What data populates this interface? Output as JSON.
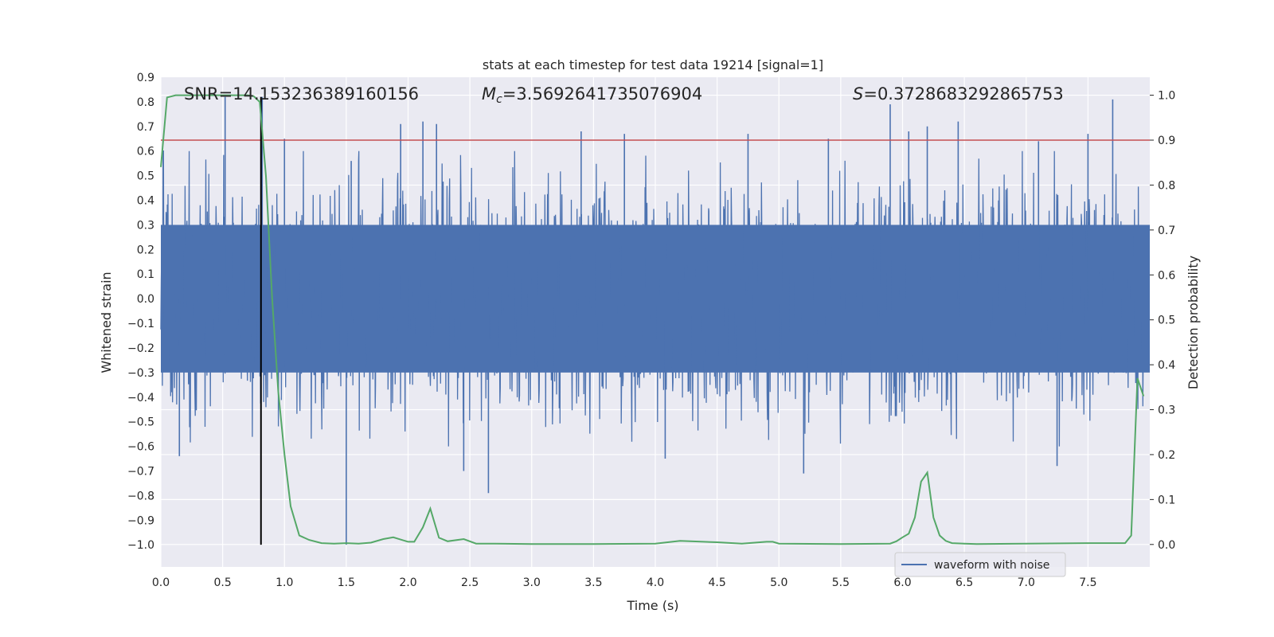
{
  "chart_data": {
    "type": "line",
    "title": "stats at each timestep for test data 19214 [signal=1]",
    "xlabel": "Time (s)",
    "ylabel": "Whitened strain",
    "ylabel_right": "Detection probability",
    "xlim": [
      0.0,
      8.0
    ],
    "ylim": [
      -1.09,
      0.9
    ],
    "ylim_right": [
      -0.05,
      1.04
    ],
    "x_ticks": [
      "0.0",
      "0.5",
      "1.0",
      "1.5",
      "2.0",
      "2.5",
      "3.0",
      "3.5",
      "4.0",
      "4.5",
      "5.0",
      "5.5",
      "6.0",
      "6.5",
      "7.0",
      "7.5"
    ],
    "y_ticks": [
      "0.9",
      "0.8",
      "0.7",
      "0.6",
      "0.5",
      "0.4",
      "0.3",
      "0.2",
      "0.1",
      "0.0",
      "−0.1",
      "−0.2",
      "−0.3",
      "−0.4",
      "−0.5",
      "−0.6",
      "−0.7",
      "−0.8",
      "−0.9",
      "−1.0"
    ],
    "y_ticks_right": [
      "1.0",
      "0.9",
      "0.8",
      "0.7",
      "0.6",
      "0.5",
      "0.4",
      "0.3",
      "0.2",
      "0.1",
      "0.0"
    ],
    "grid": true,
    "legend": {
      "position": "bottom-right",
      "entries": [
        "waveform with noise"
      ]
    },
    "annotations": {
      "snr": "SNR=14.153236389160156",
      "mc_symbol": "M",
      "mc_sub": "c",
      "mc_value": "=3.5692641735076904",
      "s_symbol": "S",
      "s_value": "=0.3728683292865753"
    },
    "threshold_right": 0.9,
    "event_time": 0.81,
    "event_line_range": [
      -1.0,
      0.82
    ],
    "waveform": {
      "name": "waveform with noise",
      "core_amplitude": 0.3,
      "envelope_amplitude": 0.55,
      "spikes": [
        [
          0.52,
          0.82
        ],
        [
          0.82,
          0.82
        ],
        [
          1.0,
          0.65
        ],
        [
          1.5,
          -1.0
        ],
        [
          1.54,
          0.56
        ],
        [
          1.94,
          0.71
        ],
        [
          2.12,
          0.72
        ],
        [
          2.23,
          0.71
        ],
        [
          2.65,
          -0.79
        ],
        [
          3.4,
          0.68
        ],
        [
          3.75,
          0.67
        ],
        [
          4.08,
          -0.65
        ],
        [
          4.75,
          0.67
        ],
        [
          5.2,
          -0.71
        ],
        [
          5.4,
          0.65
        ],
        [
          5.9,
          0.79
        ],
        [
          6.05,
          0.68
        ],
        [
          6.2,
          0.7
        ],
        [
          6.45,
          0.72
        ],
        [
          7.1,
          0.64
        ],
        [
          7.25,
          -0.68
        ],
        [
          7.5,
          0.67
        ],
        [
          7.7,
          0.81
        ],
        [
          0.15,
          -0.64
        ],
        [
          2.45,
          -0.7
        ]
      ]
    },
    "probability": {
      "name": "detection probability",
      "x": [
        0.0,
        0.05,
        0.12,
        0.2,
        0.3,
        0.4,
        0.5,
        0.6,
        0.7,
        0.75,
        0.8,
        0.85,
        0.9,
        0.95,
        1.0,
        1.05,
        1.12,
        1.2,
        1.3,
        1.4,
        1.5,
        1.6,
        1.7,
        1.8,
        1.88,
        1.95,
        2.0,
        2.05,
        2.12,
        2.18,
        2.25,
        2.32,
        2.45,
        2.55,
        2.7,
        3.0,
        3.5,
        4.0,
        4.2,
        4.5,
        4.7,
        4.9,
        4.95,
        5.0,
        5.5,
        5.9,
        5.95,
        6.0,
        6.05,
        6.1,
        6.15,
        6.2,
        6.25,
        6.3,
        6.35,
        6.4,
        6.5,
        6.6,
        7.0,
        7.5,
        7.7,
        7.75,
        7.8,
        7.85,
        7.9,
        7.95
      ],
      "y": [
        0.84,
        0.995,
        1.0,
        1.0,
        1.0,
        1.0,
        1.0,
        1.0,
        1.0,
        0.998,
        0.985,
        0.82,
        0.55,
        0.34,
        0.2,
        0.085,
        0.02,
        0.01,
        0.003,
        0.002,
        0.003,
        0.002,
        0.004,
        0.012,
        0.016,
        0.01,
        0.006,
        0.006,
        0.038,
        0.08,
        0.015,
        0.007,
        0.012,
        0.002,
        0.002,
        0.001,
        0.001,
        0.002,
        0.008,
        0.005,
        0.002,
        0.006,
        0.006,
        0.002,
        0.001,
        0.002,
        0.007,
        0.016,
        0.024,
        0.06,
        0.14,
        0.16,
        0.06,
        0.02,
        0.008,
        0.003,
        0.002,
        0.001,
        0.002,
        0.003,
        0.003,
        0.003,
        0.003,
        0.02,
        0.37,
        0.33
      ]
    },
    "colors": {
      "background": "#EAEAF2",
      "grid": "#FFFFFF",
      "waveform": "#4C72B0",
      "probability": "#55A868",
      "threshold": "#C44E52",
      "event_line": "#000000",
      "text": "#262626"
    }
  }
}
